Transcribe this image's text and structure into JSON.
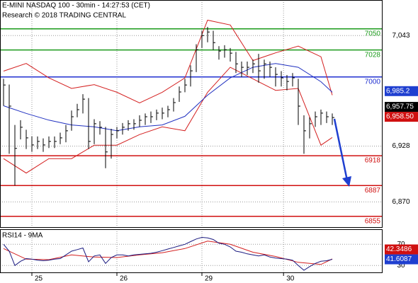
{
  "chart_data": [
    {
      "type": "ohlc",
      "title": "E-MINI NASDAQ 100 - 30min - 14:27:53 (CET)",
      "subtitle": "Research © 2018 TRADING CENTRAL",
      "x": [
        0,
        1,
        2,
        3,
        4,
        5,
        6,
        7,
        8,
        9,
        10,
        11,
        12,
        13,
        14,
        15,
        16,
        17,
        18,
        19,
        20,
        21,
        22,
        23,
        24,
        25,
        26,
        27,
        28,
        29,
        30,
        31,
        32,
        33,
        34,
        35,
        36,
        37,
        38,
        39,
        40,
        41,
        42,
        43,
        44,
        45,
        46,
        47,
        48,
        49,
        50,
        51,
        52,
        53,
        54,
        55,
        56,
        57,
        58
      ],
      "high": [
        6998,
        6992,
        6950,
        6955,
        6945,
        6938,
        6938,
        6936,
        6938,
        6938,
        6942,
        6950,
        6965,
        6972,
        6982,
        6978,
        6956,
        6954,
        6948,
        6946,
        6948,
        6952,
        6955,
        6956,
        6960,
        6962,
        6964,
        6966,
        6968,
        6970,
        6978,
        6990,
        6998,
        7012,
        7034,
        7048,
        7052,
        7048,
        7032,
        7033,
        7030,
        7026,
        7016,
        7016,
        7018,
        7024,
        7018,
        7016,
        7010,
        7006,
        7002,
        7004,
        6998,
        6960,
        6958,
        6964,
        6966,
        6964,
        6962
      ],
      "low": [
        6970,
        6920,
        6887,
        6935,
        6925,
        6922,
        6925,
        6922,
        6926,
        6926,
        6930,
        6932,
        6944,
        6958,
        6962,
        6925,
        6930,
        6940,
        6905,
        6915,
        6936,
        6940,
        6944,
        6945,
        6948,
        6950,
        6952,
        6955,
        6956,
        6958,
        6964,
        6974,
        6984,
        6990,
        7005,
        7030,
        7036,
        7028,
        7018,
        7020,
        7016,
        7004,
        7000,
        7002,
        7004,
        6994,
        6998,
        7000,
        6990,
        6990,
        6986,
        6990,
        6950,
        6920,
        6936,
        6948,
        6950,
        6952,
        6950
      ],
      "close": [
        6991.6,
        6969.6,
        6925.6,
        6947.6,
        6936.6,
        6929.2,
        6932.9,
        6929.2,
        6932.9,
        6932.9,
        6936.6,
        6943.9,
        6958.6,
        6965.9,
        6976.9,
        6932.9,
        6951.3,
        6947.6,
        6921.9,
        6940.2,
        6943.9,
        6947.6,
        6951.3,
        6951.3,
        6954.9,
        6958.6,
        6958.6,
        6962.3,
        6962.3,
        6965.9,
        6973.3,
        6984.3,
        6991.6,
        7006.3,
        7028.3,
        7043,
        7046.7,
        7035.7,
        7026.9,
        7028.3,
        7024.7,
        7013.6,
        7010,
        7010,
        7013.6,
        7006.3,
        7013.6,
        7010,
        7002.6,
        6999,
        6995.3,
        6999,
        6969.6,
        6943.9,
        6951.3,
        6958.6,
        6962.3,
        6958.6,
        6957.75
      ],
      "bar_color": "#000000",
      "xlim": [
        -0.625,
        66.875
      ],
      "xticks": [
        {
          "value": 5,
          "label": "25"
        },
        {
          "value": 20,
          "label": "26"
        },
        {
          "value": 35,
          "label": "29"
        },
        {
          "value": 49.4,
          "label": "30"
        }
      ],
      "ylim": [
        6843,
        7080
      ],
      "yticks": [
        {
          "value": 7043,
          "label": "7,043"
        },
        {
          "value": 6928,
          "label": "6,928"
        },
        {
          "value": 6870,
          "label": "6,870"
        }
      ],
      "levels": [
        {
          "value": 7050,
          "color": "#1a9a1a"
        },
        {
          "value": 7028,
          "color": "#1a9a1a"
        },
        {
          "value": 7000,
          "color": "#1f2fd0"
        },
        {
          "value": 6918,
          "color": "#d01010"
        },
        {
          "value": 6887,
          "color": "#d01010"
        },
        {
          "value": 6855,
          "color": "#d01010"
        }
      ],
      "overlays": {
        "x": [
          0,
          4,
          8,
          12,
          16,
          20,
          24,
          28,
          32,
          36,
          40,
          44,
          48,
          52,
          56,
          58
        ],
        "lines": [
          {
            "color": "#d42020",
            "values": [
              7006,
              7014,
              6999,
              6988,
              6992,
              6984,
              6973,
              6984,
              6999,
              7059,
              7054,
              7017,
              7025,
              7032,
              7021,
              6981
            ]
          },
          {
            "color": "#d42020",
            "values": [
              6915,
              6900,
              6915,
              6915,
              6929,
              6929,
              6940,
              6948,
              6944,
              6984,
              7010,
              6998,
              6986,
              6988,
              6929,
              6937
            ]
          },
          {
            "color": "#2030c0",
            "values": [
              6970,
              6962,
              6955,
              6950,
              6948,
              6944,
              6948,
              6950,
              6959,
              6981,
              6999,
              7010,
              7014,
              7010,
              6995,
              6984
            ]
          }
        ]
      },
      "price_tags": [
        {
          "value": 6985.2,
          "label": "6,985.2",
          "color": "#1f3fd0"
        },
        {
          "value": 6958.5,
          "label": "6,958.50",
          "color": "#d01010"
        },
        {
          "value": 6957.75,
          "label": "6,957.75",
          "color": "#000000"
        }
      ]
    },
    {
      "type": "line",
      "title": "RSI14 - 9MA",
      "values": [
        70,
        57,
        30,
        38,
        43,
        42,
        40,
        39,
        40,
        42,
        43,
        50,
        57,
        60,
        63,
        37,
        48,
        50,
        34,
        45,
        50,
        50,
        48,
        50,
        51,
        52,
        53,
        55,
        58,
        61,
        64,
        67,
        70,
        75,
        80,
        83,
        82,
        79,
        72,
        70,
        65,
        57,
        55,
        52,
        50,
        48,
        50,
        46,
        44,
        43,
        42,
        40,
        30,
        21,
        28,
        34,
        38,
        39,
        41.6087
      ],
      "color": "#1a1a80",
      "ma": {
        "color": "#d42020",
        "values": [
          62,
          42,
          41,
          50,
          46,
          45,
          50,
          54,
          62,
          76,
          70,
          55,
          47,
          36,
          32,
          42.3486
        ]
      },
      "ylim": [
        17,
        97
      ],
      "yticks": [
        70,
        30
      ],
      "price_tags": [
        {
          "value": 41.6087,
          "label": "41.6087",
          "color": "#1f3fd0"
        },
        {
          "value": 42.3486,
          "label": "42.3486",
          "color": "#d01010"
        }
      ]
    }
  ]
}
